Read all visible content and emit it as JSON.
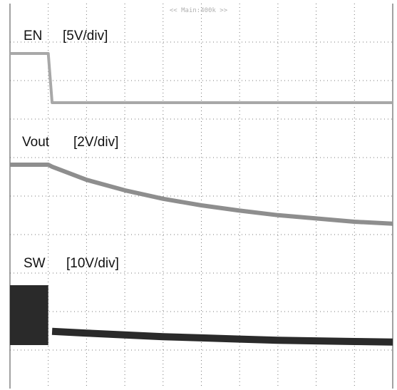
{
  "header": {
    "timebase": "<< Main:400k >>"
  },
  "channels": [
    {
      "name": "EN",
      "scale": "[5V/div]"
    },
    {
      "name": "Vout",
      "scale": "[2V/div]"
    },
    {
      "name": "SW",
      "scale": "[10V/div]"
    }
  ],
  "colors": {
    "grid": "#777777",
    "en_trace": "#a8a8a8",
    "vout_trace": "#8e8e8e",
    "sw_trace": "#2a2a2a"
  },
  "chart_data": {
    "type": "line",
    "title": "",
    "x_divisions": 10,
    "y_divisions": 10,
    "grid": true,
    "x": [
      0,
      0.1,
      0.11,
      0.2,
      0.3,
      0.4,
      0.5,
      0.6,
      0.7,
      0.8,
      0.9,
      1.0
    ],
    "series": [
      {
        "name": "EN",
        "values": [
          1.0,
          1.0,
          0.0,
          0.0,
          0.0,
          0.0,
          0.0,
          0.0,
          0.0,
          0.0,
          0.0,
          0.0
        ]
      },
      {
        "name": "Vout",
        "values": [
          1.0,
          1.0,
          0.97,
          0.77,
          0.61,
          0.48,
          0.38,
          0.3,
          0.23,
          0.18,
          0.13,
          0.1
        ]
      },
      {
        "name": "SW",
        "values": [
          1.0,
          1.0,
          0.23,
          0.2,
          0.17,
          0.14,
          0.12,
          0.1,
          0.08,
          0.07,
          0.06,
          0.05
        ]
      }
    ]
  }
}
